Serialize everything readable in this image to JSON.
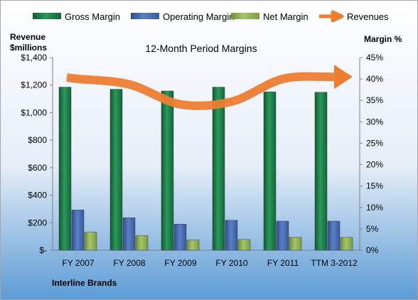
{
  "chart_data": {
    "type": "bar",
    "title": "12-Month Period Margins",
    "company": "Interline Brands",
    "left_axis_title_lines": [
      "Revenue",
      "$millions"
    ],
    "right_axis_title": "Margin %",
    "categories": [
      "FY 2007",
      "FY 2008",
      "FY 2009",
      "FY 2010",
      "FY 2011",
      "TTM 3-2012"
    ],
    "y_left": {
      "min": 0,
      "max": 1400,
      "step": 200,
      "tick_labels": [
        "$-",
        "$200",
        "$400",
        "$600",
        "$800",
        "$1,000",
        "$1,200",
        "$1,400"
      ]
    },
    "y_right": {
      "min": 0,
      "max": 45,
      "step": 5,
      "tick_labels": [
        "0%",
        "5%",
        "10%",
        "15%",
        "20%",
        "25%",
        "30%",
        "35%",
        "40%",
        "45%"
      ]
    },
    "series": [
      {
        "name": "Gross Margin",
        "kind": "bar",
        "axis": "right",
        "color": "#1e7a47",
        "values": [
          38.1,
          37.6,
          37.2,
          38.1,
          37.0,
          36.9
        ]
      },
      {
        "name": "Operating Margin",
        "kind": "bar",
        "axis": "right",
        "color": "#4a6aab",
        "values": [
          9.4,
          7.6,
          6.1,
          7.0,
          6.8,
          6.8
        ]
      },
      {
        "name": "Net Margin",
        "kind": "bar",
        "axis": "right",
        "color": "#8aac4c",
        "values": [
          4.2,
          3.4,
          2.4,
          2.5,
          3.0,
          3.0
        ]
      },
      {
        "name": "Revenues",
        "kind": "arrow-line",
        "axis": "left",
        "color": "#ed7d31",
        "values": [
          1245,
          1205,
          1060,
          1080,
          1245,
          1260
        ]
      }
    ],
    "legend_position": "top",
    "grid": false
  },
  "colors": {
    "gross": "#1e7a47",
    "operating": "#4a6aab",
    "net": "#8aac4c",
    "revenue": "#ed7d31",
    "background_top": "#ffffff",
    "background_bottom": "#5b9bd5"
  }
}
